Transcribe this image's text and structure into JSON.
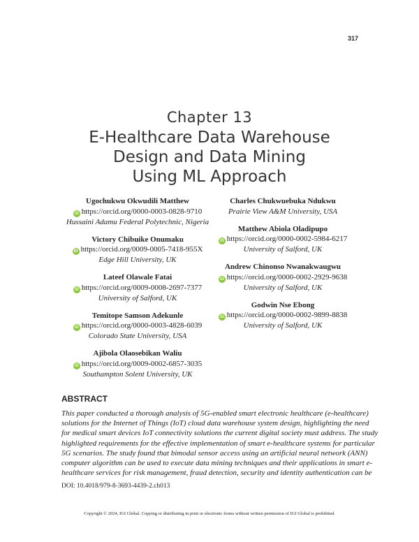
{
  "page_number": "317",
  "chapter_label": "Chapter 13",
  "title_lines": [
    "E-Healthcare Data Warehouse",
    "Design and Data Mining",
    "Using ML Approach"
  ],
  "authors_left": [
    {
      "name": "Ugochukwu Okwudili Matthew",
      "orcid": "https://orcid.org/0000-0003-0828-9710",
      "affiliation": "Hussaini Adamu Federal Polytechnic, Nigeria"
    },
    {
      "name": "Victory Chibuike Onumaku",
      "orcid": "https://orcid.org/0009-0005-7418-955X",
      "affiliation": "Edge Hill University, UK"
    },
    {
      "name": "Lateef Olawale Fatai",
      "orcid": "https://orcid.org/0009-0008-2697-7377",
      "affiliation": "University of Salford, UK"
    },
    {
      "name": "Temitope Samson Adekunle",
      "orcid": "https://orcid.org/0000-0003-4828-6039",
      "affiliation": "Colorado State University, USA"
    },
    {
      "name": "Ajibola Olaosebikan Waliu",
      "orcid": "https://orcid.org/0009-0002-6857-3035",
      "affiliation": "Southampton Solent University, UK"
    }
  ],
  "authors_right": [
    {
      "name": "Charles Chukwuebuka Ndukwu",
      "affiliation": "Prairie View A&M University, USA"
    },
    {
      "name": "Matthew Abiola Oladipupo",
      "orcid": "https://orcid.org/0000-0002-5984-6217",
      "affiliation": "University of Salford, UK"
    },
    {
      "name": "Andrew Chinonso Nwanakwaugwu",
      "orcid": "https://orcid.org/0000-0002-2929-9638",
      "affiliation": "University of Salford, UK"
    },
    {
      "name": "Godwin Nse Ebong",
      "orcid": "https://orcid.org/0000-0002-9899-8838",
      "affiliation": "University of Salford, UK"
    }
  ],
  "orcid_icon": "orcid-id-icon",
  "orcid_color": "#8cc63f",
  "abstract_heading": "ABSTRACT",
  "abstract_lines": [
    "This paper conducted a thorough analysis of 5G-enabled smart electronic healthcare (e-healthcare)",
    "solutions for the Internet of Things (IoT) cloud data warehouse system design, highlighting the need",
    "for medical smart devices IoT connectivity solutions the current digital society must address. The study",
    "highlighted requirements for the effective implementation of smart e-healthcare systems for particular",
    "5G scenarios. The study found that bimodal sensor access using an artificial neural network (ANN)",
    "computer algorithm can be used to execute data mining techniques and their applications in smart e-",
    "healthcare services for risk management, fraud detection, security and identity authentication can be"
  ],
  "doi": "DOI: 10.4018/979-8-3693-4439-2.ch013",
  "copyright": "Copyright © 2024, IGI Global. Copying or distributing in print or electronic forms without written permission of IGI Global is prohibited."
}
